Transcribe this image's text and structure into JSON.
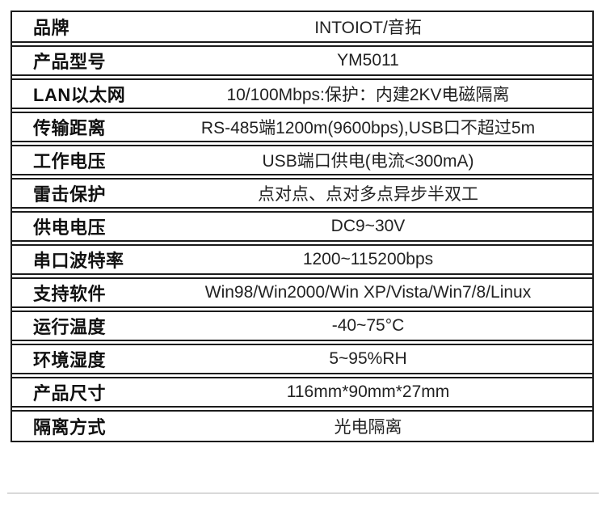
{
  "table": {
    "name": "product-specification-table",
    "rows": [
      {
        "label": "品牌",
        "value": "INTOIOT/音拓"
      },
      {
        "label": "产品型号",
        "value": "YM5011"
      },
      {
        "label": "LAN以太网",
        "value": "10/100Mbps:保护：内建2KV电磁隔离"
      },
      {
        "label": "传输距离",
        "value": "RS-485端1200m(9600bps),USB口不超过5m"
      },
      {
        "label": "工作电压",
        "value": "USB端口供电(电流<300mA)"
      },
      {
        "label": "雷击保护",
        "value": "点对点、点对多点异步半双工"
      },
      {
        "label": "供电电压",
        "value": "DC9~30V"
      },
      {
        "label": "串口波特率",
        "value": "1200~115200bps"
      },
      {
        "label": "支持软件",
        "value": "Win98/Win2000/Win XP/Vista/Win7/8/Linux"
      },
      {
        "label": "运行温度",
        "value": "-40~75°C"
      },
      {
        "label": "环境湿度",
        "value": "5~95%RH"
      },
      {
        "label": "产品尺寸",
        "value": "116mm*90mm*27mm"
      },
      {
        "label": "隔离方式",
        "value": "光电隔离"
      }
    ]
  },
  "colors": {
    "border": "#1b1b1b",
    "label_text": "#111111",
    "value_text": "#222222",
    "background": "#ffffff",
    "bottom_divider": "#d9d9d9"
  }
}
